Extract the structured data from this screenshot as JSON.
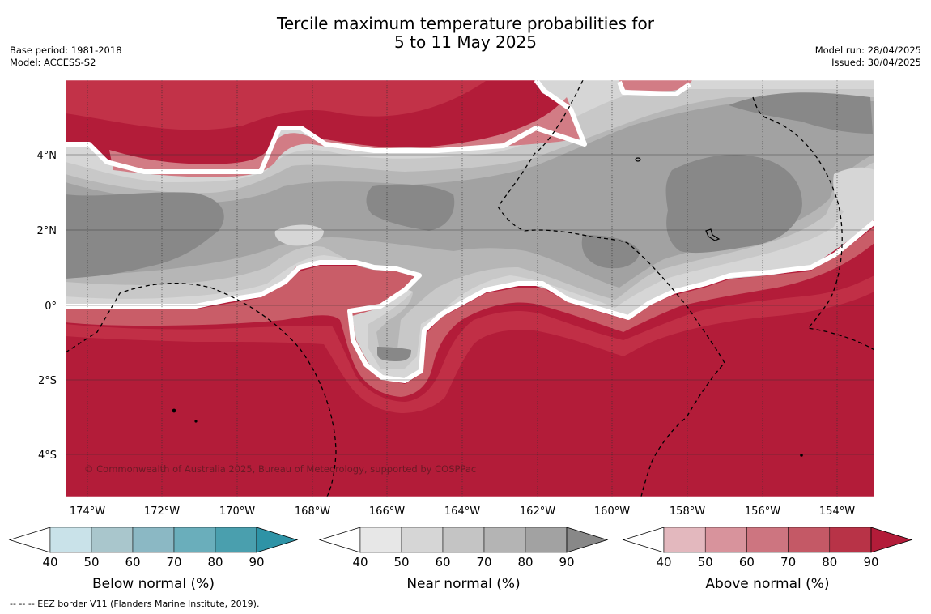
{
  "title": {
    "line1": "Tercile maximum temperature probabilities for",
    "line2": "5 to 11 May 2025"
  },
  "meta": {
    "base_period": "Base period: 1981-2018",
    "model": "Model: ACCESS-S2",
    "model_run": "Model run: 28/04/2025",
    "issued": "Issued: 30/04/2025"
  },
  "map": {
    "lon_labels": [
      "174°W",
      "172°W",
      "170°W",
      "168°W",
      "166°W",
      "164°W",
      "162°W",
      "160°W",
      "158°W",
      "156°W",
      "154°W"
    ],
    "lat_labels": [
      "4°N",
      "2°N",
      "0°",
      "2°S",
      "4°S"
    ],
    "copyright": "© Commonwealth of Australia 2025, Bureau of Meteorology, supported by COSPPac",
    "colors": {
      "above_90": "#b31c39",
      "above_80": "#c23248",
      "above_70": "#c95d68",
      "above_60": "#d27c85",
      "above_50": "#dba5ab",
      "near_50": "#d6d6d6",
      "near_60": "#c8c8c8",
      "near_70": "#b6b6b6",
      "near_80": "#a2a2a2",
      "near_90": "#888888"
    }
  },
  "colorbars": [
    {
      "title": "Below normal (%)",
      "ticks": [
        "40",
        "50",
        "60",
        "70",
        "80",
        "90"
      ],
      "colors": [
        "#ffffff",
        "#c9e2e9",
        "#a9c6cc",
        "#8bb8c4",
        "#6aaebb",
        "#4a9fae",
        "#2e93a6"
      ]
    },
    {
      "title": "Near normal (%)",
      "ticks": [
        "40",
        "50",
        "60",
        "70",
        "80",
        "90"
      ],
      "colors": [
        "#ffffff",
        "#e7e7e7",
        "#d6d6d6",
        "#c4c4c4",
        "#b4b4b4",
        "#a2a2a2",
        "#888888"
      ]
    },
    {
      "title": "Above normal (%)",
      "ticks": [
        "40",
        "50",
        "60",
        "70",
        "80",
        "90"
      ],
      "colors": [
        "#ffffff",
        "#e3b8be",
        "#d8939c",
        "#cd7580",
        "#c45966",
        "#b83347",
        "#b31c39"
      ]
    }
  ],
  "footnote": "--  --  -- EEZ border V11 (Flanders Marine Institute, 2019)."
}
